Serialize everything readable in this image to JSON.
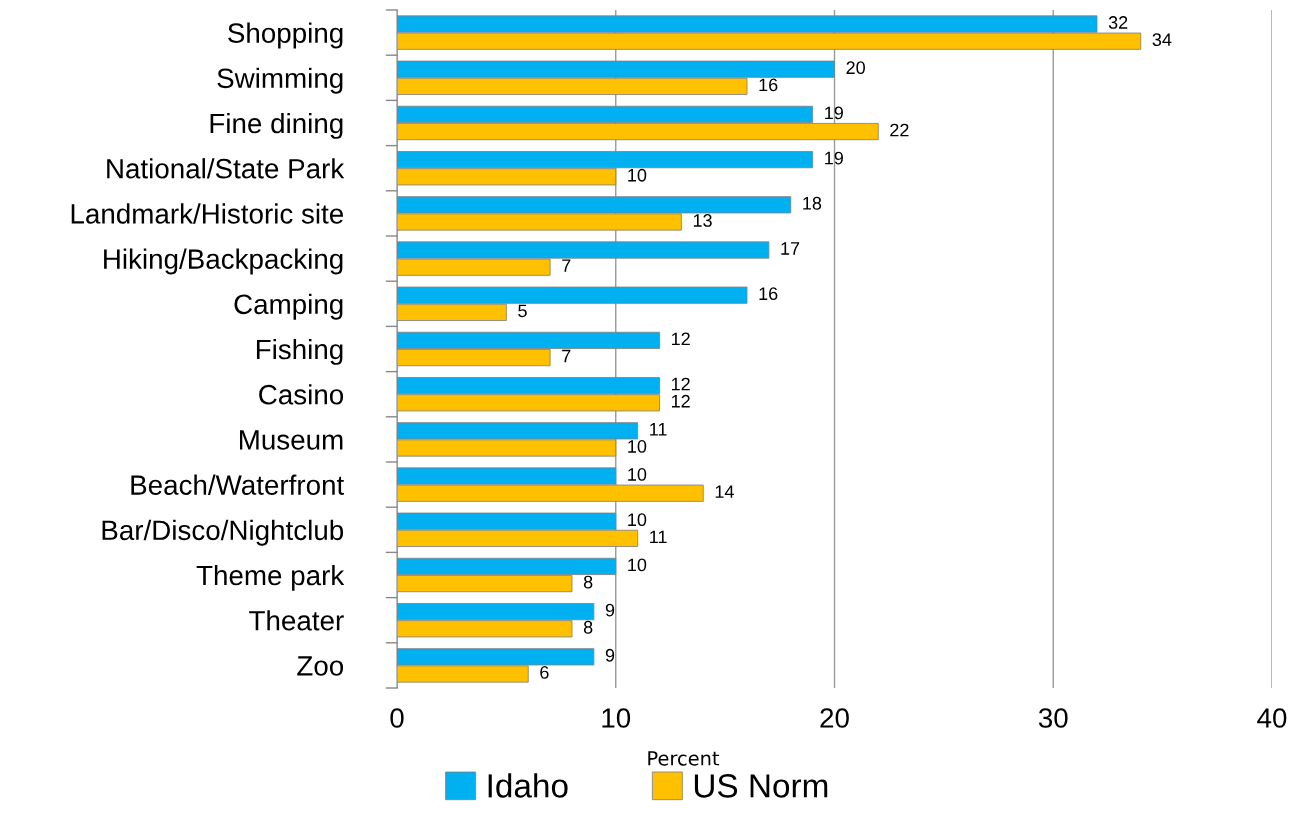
{
  "chart_data": {
    "type": "bar",
    "orientation": "horizontal",
    "xlabel": "Percent",
    "categories": [
      "Shopping",
      "Swimming",
      "Fine dining",
      "National/State Park",
      "Landmark/Historic site",
      "Hiking/Backpacking",
      "Camping",
      "Fishing",
      "Casino",
      "Museum",
      "Beach/Waterfront",
      "Bar/Disco/Nightclub",
      "Theme park",
      "Theater",
      "Zoo"
    ],
    "series": [
      {
        "name": "Idaho",
        "color": "#00b0f0",
        "values": [
          32,
          20,
          19,
          19,
          18,
          17,
          16,
          12,
          12,
          11,
          10,
          10,
          10,
          9,
          9
        ]
      },
      {
        "name": "US Norm",
        "color": "#ffc000",
        "values": [
          34,
          16,
          22,
          10,
          13,
          7,
          5,
          7,
          12,
          10,
          14,
          11,
          8,
          8,
          6
        ]
      }
    ],
    "xlim": [
      0,
      40
    ],
    "xticks": [
      0,
      10,
      20,
      30,
      40
    ],
    "grid": "x",
    "legend": "bottom",
    "data_labels": true
  }
}
